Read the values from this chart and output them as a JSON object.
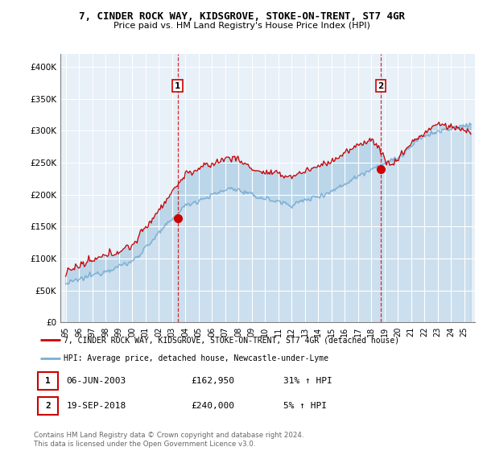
{
  "title": "7, CINDER ROCK WAY, KIDSGROVE, STOKE-ON-TRENT, ST7 4GR",
  "subtitle": "Price paid vs. HM Land Registry's House Price Index (HPI)",
  "legend_line1": "7, CINDER ROCK WAY, KIDSGROVE, STOKE-ON-TRENT, ST7 4GR (detached house)",
  "legend_line2": "HPI: Average price, detached house, Newcastle-under-Lyme",
  "annotation1_date": "06-JUN-2003",
  "annotation1_price": "£162,950",
  "annotation1_hpi": "31% ↑ HPI",
  "annotation2_date": "19-SEP-2018",
  "annotation2_price": "£240,000",
  "annotation2_hpi": "5% ↑ HPI",
  "footer": "Contains HM Land Registry data © Crown copyright and database right 2024.\nThis data is licensed under the Open Government Licence v3.0.",
  "red_color": "#cc0000",
  "blue_color": "#7bafd4",
  "fill_color": "#ddeeff",
  "bg_color": "#e8f0f8",
  "ylim": [
    0,
    420000
  ],
  "yticks": [
    0,
    50000,
    100000,
    150000,
    200000,
    250000,
    300000,
    350000,
    400000
  ],
  "ytick_labels": [
    "£0",
    "£50K",
    "£100K",
    "£150K",
    "£200K",
    "£250K",
    "£300K",
    "£350K",
    "£400K"
  ],
  "sale1_year": 2003.42,
  "sale1_price": 162950,
  "sale2_year": 2018.71,
  "sale2_price": 240000
}
